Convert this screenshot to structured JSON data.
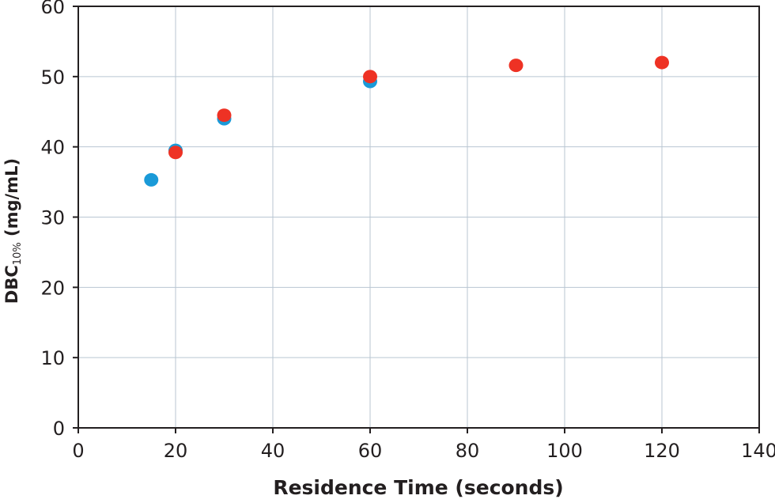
{
  "chart_data": {
    "type": "scatter",
    "title": "",
    "xlabel": "Residence Time (seconds)",
    "ylabel": {
      "main": "DBC",
      "subscript": "10%",
      "units": " (mg/mL)"
    },
    "xlim": [
      0,
      140
    ],
    "ylim": [
      0,
      60
    ],
    "xticks": [
      0,
      20,
      40,
      60,
      80,
      100,
      120,
      140
    ],
    "yticks": [
      0,
      10,
      20,
      30,
      40,
      50,
      60
    ],
    "grid": true,
    "legend": "none",
    "series": [
      {
        "color": "#1a9ad8",
        "x": [
          15,
          20,
          30,
          60
        ],
        "y": [
          35.3,
          39.5,
          44.0,
          49.3
        ]
      },
      {
        "color": "#ee3224",
        "x": [
          20,
          30,
          60,
          90,
          120
        ],
        "y": [
          39.2,
          44.5,
          50.0,
          51.6,
          52.0
        ]
      }
    ]
  }
}
